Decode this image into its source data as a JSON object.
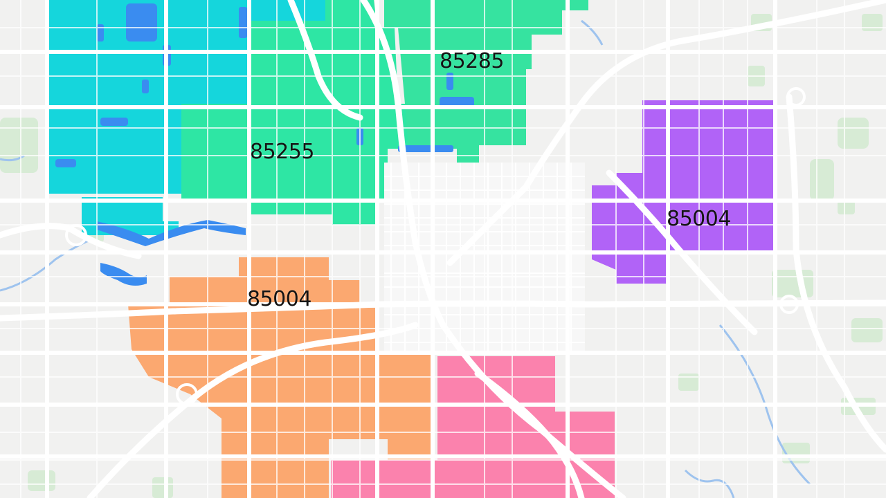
{
  "map": {
    "zones": [
      {
        "id": "cyan-west",
        "label": "",
        "color": "#15d6dc"
      },
      {
        "id": "green-central",
        "label": "85255",
        "color": "#2ee6a4"
      },
      {
        "id": "green-north",
        "label": "85285",
        "color": "#36e3a0"
      },
      {
        "id": "purple-east",
        "label": "85004",
        "color": "#b163f7"
      },
      {
        "id": "orange-southwest",
        "label": "85004",
        "color": "#fba870"
      },
      {
        "id": "pink-south",
        "label": "",
        "color": "#fb82ad"
      }
    ],
    "colors": {
      "background": "#f1f1f0",
      "road": "#ffffff",
      "water": "#3a8cf0",
      "park": "#d7ebd5",
      "downtown": "#f6f6f6",
      "label_text": "#141414"
    },
    "icons": {
      "water": "water-feature",
      "park": "park-area"
    }
  }
}
